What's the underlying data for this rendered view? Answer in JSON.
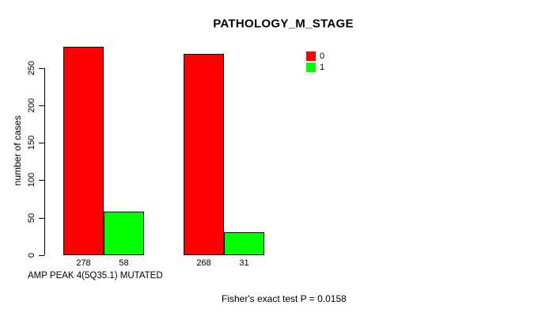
{
  "chart_data": {
    "type": "bar",
    "title": "PATHOLOGY_M_STAGE",
    "ylabel": "number of cases",
    "xlabel": "AMP PEAK 4(5Q35.1) MUTATED",
    "annotation": "Fisher's exact test P = 0.0158",
    "categories": [
      "",
      ""
    ],
    "series": [
      {
        "name": "0",
        "color": "#ff0000",
        "values": [
          278,
          268
        ]
      },
      {
        "name": "1",
        "color": "#00ff00",
        "values": [
          58,
          31
        ]
      }
    ],
    "bar_value_labels": [
      278,
      58,
      268,
      31
    ],
    "yticks": [
      0,
      50,
      100,
      150,
      200,
      250
    ],
    "ylim": [
      0,
      278
    ],
    "grid": false,
    "legend_position": "top-right",
    "bar_border_color": "#000000",
    "axis_color": "#000000"
  }
}
